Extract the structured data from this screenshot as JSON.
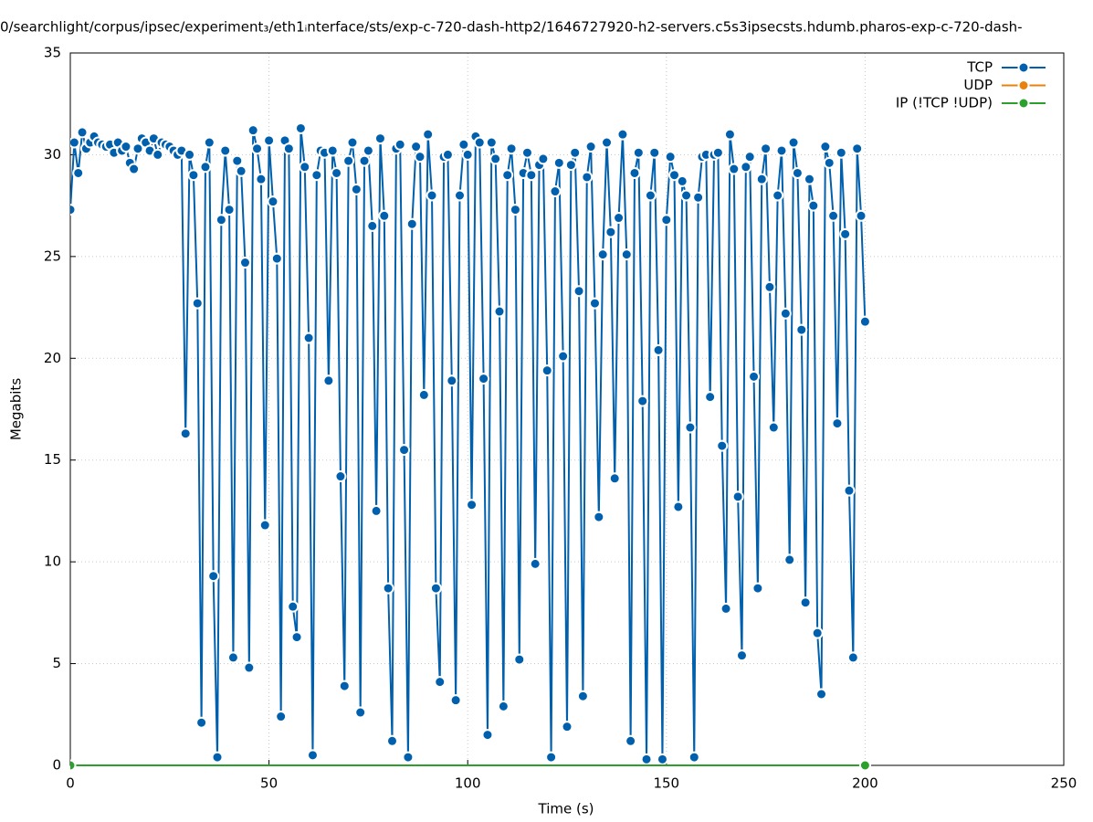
{
  "chart_data": {
    "type": "line",
    "title": "0/searchlight/corpus/ipsec/experiment₃/eth1ᵢnterface/sts/exp-c-720-dash-http2/1646727920-h2-servers.c5s3ipsecsts.hdumb.pharos-exp-c-720-dash-",
    "x_label": "Time (s)",
    "y_label": "Megabits",
    "xlim": [
      0,
      250
    ],
    "xticks": [
      0,
      50,
      100,
      150,
      200,
      250
    ],
    "ylim": [
      0,
      35
    ],
    "yticks": [
      0,
      5,
      10,
      15,
      20,
      25,
      30,
      35
    ],
    "grid": true,
    "legend": "top-right",
    "series": [
      {
        "name": "TCP",
        "color": "#0060ad",
        "x": [
          0,
          1,
          2,
          3,
          4,
          5,
          6,
          7,
          8,
          9,
          10,
          11,
          12,
          13,
          14,
          15,
          16,
          17,
          18,
          19,
          20,
          21,
          22,
          23,
          24,
          25,
          26,
          27,
          28,
          29,
          30,
          31,
          32,
          33,
          34,
          35,
          36,
          37,
          38,
          39,
          40,
          41,
          42,
          43,
          44,
          45,
          46,
          47,
          48,
          49,
          50,
          51,
          52,
          53,
          54,
          55,
          56,
          57,
          58,
          59,
          60,
          61,
          62,
          63,
          64,
          65,
          66,
          67,
          68,
          69,
          70,
          71,
          72,
          73,
          74,
          75,
          76,
          77,
          78,
          79,
          80,
          81,
          82,
          83,
          84,
          85,
          86,
          87,
          88,
          89,
          90,
          91,
          92,
          93,
          94,
          95,
          96,
          97,
          98,
          99,
          100,
          101,
          102,
          103,
          104,
          105,
          106,
          107,
          108,
          109,
          110,
          111,
          112,
          113,
          114,
          115,
          116,
          117,
          118,
          119,
          120,
          121,
          122,
          123,
          124,
          125,
          126,
          127,
          128,
          129,
          130,
          131,
          132,
          133,
          134,
          135,
          136,
          137,
          138,
          139,
          140,
          141,
          142,
          143,
          144,
          145,
          146,
          147,
          148,
          149,
          150,
          151,
          152,
          153,
          154,
          155,
          156,
          157,
          158,
          159,
          160,
          161,
          162,
          163,
          164,
          165,
          166,
          167,
          168,
          169,
          170,
          171,
          172,
          173,
          174,
          175,
          176,
          177,
          178,
          179,
          180,
          181,
          182,
          183,
          184,
          185,
          186,
          187,
          188,
          189,
          190,
          191,
          192,
          193,
          194,
          195,
          196,
          197,
          198,
          199,
          200
        ],
        "values": [
          27.3,
          30.6,
          29.1,
          31.1,
          30.3,
          30.6,
          30.9,
          30.6,
          30.5,
          30.4,
          30.5,
          30.1,
          30.6,
          30.2,
          30.4,
          29.6,
          29.3,
          30.3,
          30.8,
          30.6,
          30.2,
          30.8,
          30.0,
          30.6,
          30.5,
          30.4,
          30.2,
          30.0,
          30.2,
          16.3,
          30.0,
          29.0,
          22.7,
          2.1,
          29.4,
          30.6,
          9.3,
          0.4,
          26.8,
          30.2,
          27.3,
          5.3,
          29.7,
          29.2,
          24.7,
          4.8,
          31.2,
          30.3,
          28.8,
          11.8,
          30.7,
          27.7,
          24.9,
          2.4,
          30.7,
          30.3,
          7.8,
          6.3,
          31.3,
          29.4,
          21.0,
          0.5,
          29.0,
          30.2,
          30.1,
          18.9,
          30.2,
          29.1,
          14.2,
          3.9,
          29.7,
          30.6,
          28.3,
          2.6,
          29.7,
          30.2,
          26.5,
          12.5,
          30.8,
          27.0,
          8.7,
          1.2,
          30.3,
          30.5,
          15.5,
          0.4,
          26.6,
          30.4,
          29.9,
          18.2,
          31.0,
          28.0,
          8.7,
          4.1,
          29.9,
          30.0,
          18.9,
          3.2,
          28.0,
          30.5,
          30.0,
          12.8,
          30.9,
          30.6,
          19.0,
          1.5,
          30.6,
          29.8,
          22.3,
          2.9,
          29.0,
          30.3,
          27.3,
          5.2,
          29.1,
          30.1,
          29.0,
          9.9,
          29.5,
          29.8,
          19.4,
          0.4,
          28.2,
          29.6,
          20.1,
          1.9,
          29.5,
          30.1,
          23.3,
          3.4,
          28.9,
          30.4,
          22.7,
          12.2,
          25.1,
          30.6,
          26.2,
          14.1,
          26.9,
          31.0,
          25.1,
          1.2,
          29.1,
          30.1,
          17.9,
          0.3,
          28.0,
          30.1,
          20.4,
          0.3,
          26.8,
          29.9,
          29.0,
          12.7,
          28.7,
          28.0,
          16.6,
          0.4,
          27.9,
          29.9,
          30.0,
          18.1,
          30.0,
          30.1,
          15.7,
          7.7,
          31.0,
          29.3,
          13.2,
          5.4,
          29.4,
          29.9,
          19.1,
          8.7,
          28.8,
          30.3,
          23.5,
          16.6,
          28.0,
          30.2,
          22.2,
          10.1,
          30.6,
          29.1,
          21.4,
          8.0,
          28.8,
          27.5,
          6.5,
          3.5,
          30.4,
          29.6,
          27.0,
          16.8,
          30.1,
          26.1,
          13.5,
          5.3,
          30.3,
          27.0,
          21.8
        ]
      },
      {
        "name": "UDP",
        "color": "#e8820c",
        "x": [
          0,
          200
        ],
        "values": [
          0,
          0
        ]
      },
      {
        "name": "IP (!TCP  !UDP)",
        "color": "#2ca02c",
        "x": [
          0,
          200
        ],
        "values": [
          0,
          0
        ]
      }
    ]
  }
}
